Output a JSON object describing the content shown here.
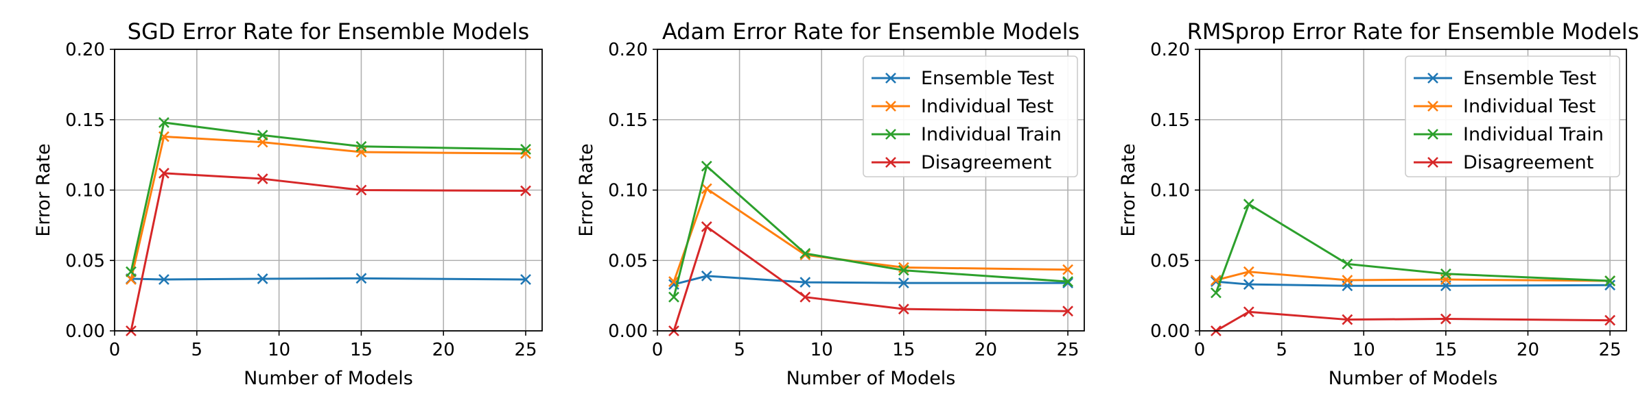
{
  "colors": {
    "ensemble_test": "#1f77b4",
    "individual_test": "#ff7f0e",
    "individual_train": "#2ca02c",
    "disagreement": "#d62728",
    "grid": "#b0b0b0"
  },
  "chart_data": [
    {
      "type": "line",
      "title": "SGD Error Rate for Ensemble Models",
      "xlabel": "Number of Models",
      "ylabel": "Error Rate",
      "xlim": [
        0,
        26
      ],
      "ylim": [
        0,
        0.2
      ],
      "xticks": [
        "0",
        "5",
        "10",
        "15",
        "20",
        "25"
      ],
      "yticks": [
        "0.00",
        "0.05",
        "0.10",
        "0.15",
        "0.20"
      ],
      "grid": true,
      "legend": false,
      "x": [
        1,
        3,
        9,
        15,
        25
      ],
      "series": [
        {
          "name": "Ensemble Test",
          "color_key": "ensemble_test",
          "values": [
            0.037,
            0.0365,
            0.037,
            0.0373,
            0.0365
          ]
        },
        {
          "name": "Individual Test",
          "color_key": "individual_test",
          "values": [
            0.0365,
            0.138,
            0.134,
            0.127,
            0.126
          ]
        },
        {
          "name": "Individual Train",
          "color_key": "individual_train",
          "values": [
            0.042,
            0.148,
            0.139,
            0.131,
            0.129
          ]
        },
        {
          "name": "Disagreement",
          "color_key": "disagreement",
          "values": [
            0.0,
            0.112,
            0.108,
            0.1,
            0.0995
          ]
        }
      ]
    },
    {
      "type": "line",
      "title": "Adam Error Rate for Ensemble Models",
      "xlabel": "Number of Models",
      "ylabel": "Error Rate",
      "xlim": [
        0,
        26
      ],
      "ylim": [
        0,
        0.2
      ],
      "xticks": [
        "0",
        "5",
        "10",
        "15",
        "20",
        "25"
      ],
      "yticks": [
        "0.00",
        "0.05",
        "0.10",
        "0.15",
        "0.20"
      ],
      "grid": true,
      "legend": "top-right",
      "x": [
        1,
        3,
        9,
        15,
        25
      ],
      "series": [
        {
          "name": "Ensemble Test",
          "color_key": "ensemble_test",
          "values": [
            0.033,
            0.039,
            0.0345,
            0.034,
            0.034
          ]
        },
        {
          "name": "Individual Test",
          "color_key": "individual_test",
          "values": [
            0.035,
            0.101,
            0.054,
            0.045,
            0.0435
          ]
        },
        {
          "name": "Individual Train",
          "color_key": "individual_train",
          "values": [
            0.024,
            0.117,
            0.055,
            0.043,
            0.035
          ]
        },
        {
          "name": "Disagreement",
          "color_key": "disagreement",
          "values": [
            0.0,
            0.074,
            0.024,
            0.0155,
            0.014
          ]
        }
      ]
    },
    {
      "type": "line",
      "title": "RMSprop Error Rate for Ensemble Models",
      "xlabel": "Number of Models",
      "ylabel": "Error Rate",
      "xlim": [
        0,
        26
      ],
      "ylim": [
        0,
        0.2
      ],
      "xticks": [
        "0",
        "5",
        "10",
        "15",
        "20",
        "25"
      ],
      "yticks": [
        "0.00",
        "0.05",
        "0.10",
        "0.15",
        "0.20"
      ],
      "grid": true,
      "legend": "top-right",
      "x": [
        1,
        3,
        9,
        15,
        25
      ],
      "series": [
        {
          "name": "Ensemble Test",
          "color_key": "ensemble_test",
          "values": [
            0.035,
            0.033,
            0.032,
            0.032,
            0.0325
          ]
        },
        {
          "name": "Individual Test",
          "color_key": "individual_test",
          "values": [
            0.036,
            0.042,
            0.036,
            0.0365,
            0.0355
          ]
        },
        {
          "name": "Individual Train",
          "color_key": "individual_train",
          "values": [
            0.027,
            0.09,
            0.0475,
            0.0405,
            0.0355
          ]
        },
        {
          "name": "Disagreement",
          "color_key": "disagreement",
          "values": [
            0.0,
            0.0135,
            0.008,
            0.0085,
            0.0075
          ]
        }
      ]
    }
  ]
}
